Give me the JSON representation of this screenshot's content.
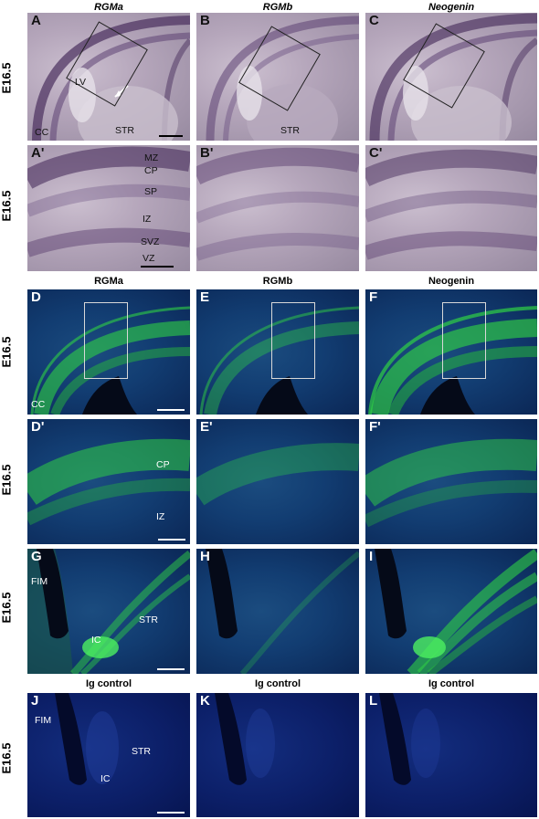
{
  "rows": {
    "a": "E16.5",
    "a2": "E16.5",
    "d": "E16.5",
    "d2": "E16.5",
    "g": "E16.5",
    "j": "E16.5"
  },
  "titles": {
    "ish": [
      "RGMa",
      "RGMb",
      "Neogenin"
    ],
    "fluor": [
      "RGMa",
      "RGMb",
      "Neogenin"
    ],
    "ctrl": [
      "Ig control",
      "Ig control",
      "Ig control"
    ]
  },
  "panels": {
    "A": "A",
    "B": "B",
    "C": "C",
    "A2": "A'",
    "B2": "B'",
    "C2": "C'",
    "D": "D",
    "E": "E",
    "F": "F",
    "D2": "D'",
    "E2": "E'",
    "F2": "F'",
    "G": "G",
    "H": "H",
    "I": "I",
    "J": "J",
    "K": "K",
    "L": "L"
  },
  "annotations": {
    "lv": "LV",
    "cc": "CC",
    "str": "STR",
    "str_b": "STR",
    "mz": "MZ",
    "cp": "CP",
    "sp": "SP",
    "iz": "IZ",
    "svz": "SVZ",
    "vz": "VZ",
    "cc_d": "CC",
    "cp_d": "CP",
    "iz_d": "IZ",
    "fim_g": "FIM",
    "str_g": "STR",
    "ic_g": "IC",
    "fim_j": "FIM",
    "str_j": "STR",
    "ic_j": "IC"
  },
  "colors": {
    "ish_stain": "#4a2f5e",
    "fluor_green": "#2fd044",
    "dapi_blue": "#1a3f80"
  }
}
